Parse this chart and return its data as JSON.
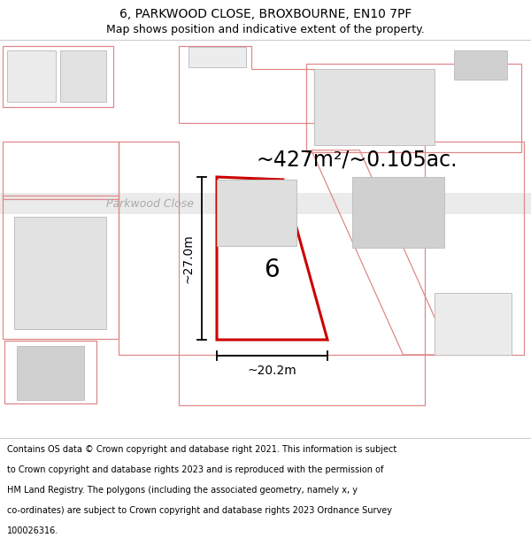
{
  "title": "6, PARKWOOD CLOSE, BROXBOURNE, EN10 7PF",
  "subtitle": "Map shows position and indicative extent of the property.",
  "footer_lines": [
    "Contains OS data © Crown copyright and database right 2021. This information is subject to Crown copyright and database rights 2023 and is reproduced with the permission of",
    "HM Land Registry. The polygons (including the associated geometry, namely x, y co-ordinates) are subject to Crown copyright and database rights 2023 Ordnance Survey",
    "100026316."
  ],
  "area_label": "~427m²/~0.105ac.",
  "width_label": "~20.2m",
  "height_label": "~27.0m",
  "number_label": "6",
  "road_label": "Parkwood Close",
  "title_fontsize": 10,
  "subtitle_fontsize": 9,
  "footer_fontsize": 7.0,
  "red_color": "#cc0000",
  "pink_color": "#e08888",
  "gray_fill": "#e2e2e2",
  "light_gray": "#ececec",
  "dark_gray": "#d0d0d0",
  "inner_fill": "#dedede"
}
